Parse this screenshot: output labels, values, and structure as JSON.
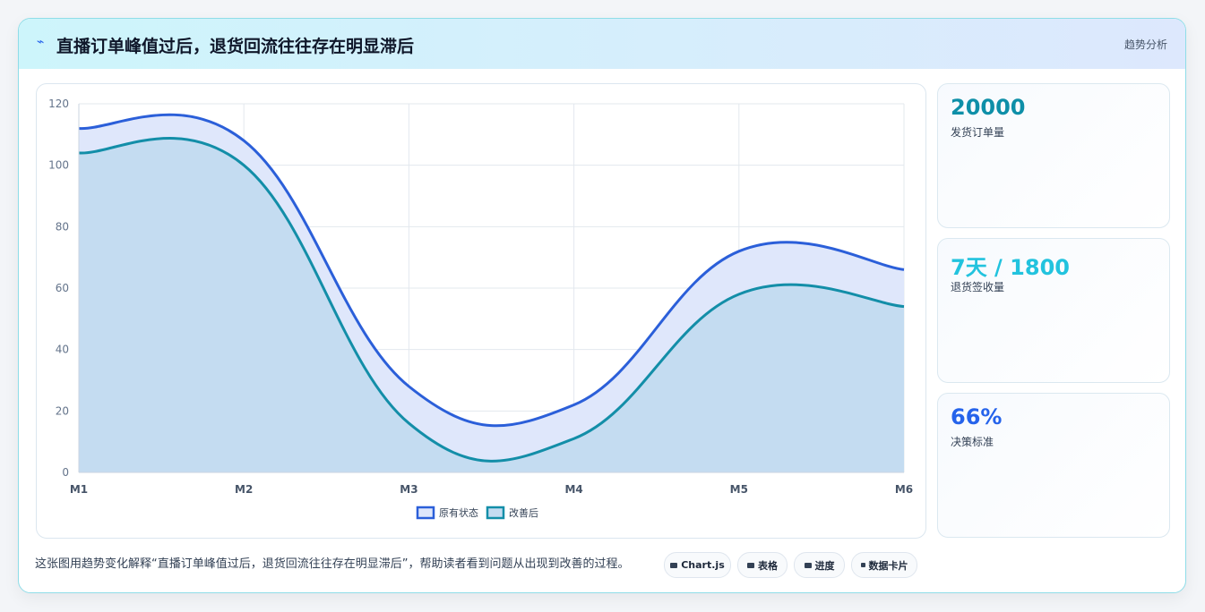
{
  "header": {
    "title": "直播订单峰值过后，退货回流往往存在明显滞后",
    "tag": "趋势分析"
  },
  "chart_data": {
    "type": "line",
    "categories": [
      "M1",
      "M2",
      "M3",
      "M4",
      "M5",
      "M6"
    ],
    "series": [
      {
        "name": "原有状态",
        "color": "#2b5fd9",
        "fill": "#dfe7fb",
        "values": [
          112,
          108,
          28,
          22,
          72,
          66
        ]
      },
      {
        "name": "改善后",
        "color": "#138ea8",
        "fill": "#c4dcf1",
        "values": [
          104,
          100,
          16,
          11,
          58,
          54
        ]
      }
    ],
    "ylim": [
      0,
      120
    ],
    "yticks": [
      0,
      20,
      40,
      60,
      80,
      100,
      120
    ],
    "grid": true,
    "smooth": true,
    "legend": "bottom"
  },
  "stats": [
    {
      "value": "20000",
      "label": "发货订单量",
      "color": "#0e8fa8"
    },
    {
      "value": "7天 / 1800",
      "label": "退货签收量",
      "color": "#22c3de"
    },
    {
      "value": "66%",
      "label": "决策标准",
      "color": "#2563eb"
    }
  ],
  "footer": {
    "text": "这张图用趋势变化解释“直播订单峰值过后，退货回流往往存在明显滞后”，帮助读者看到问题从出现到改善的过程。",
    "buttons": [
      "Chart.js",
      "表格",
      "进度",
      "数据卡片"
    ]
  }
}
